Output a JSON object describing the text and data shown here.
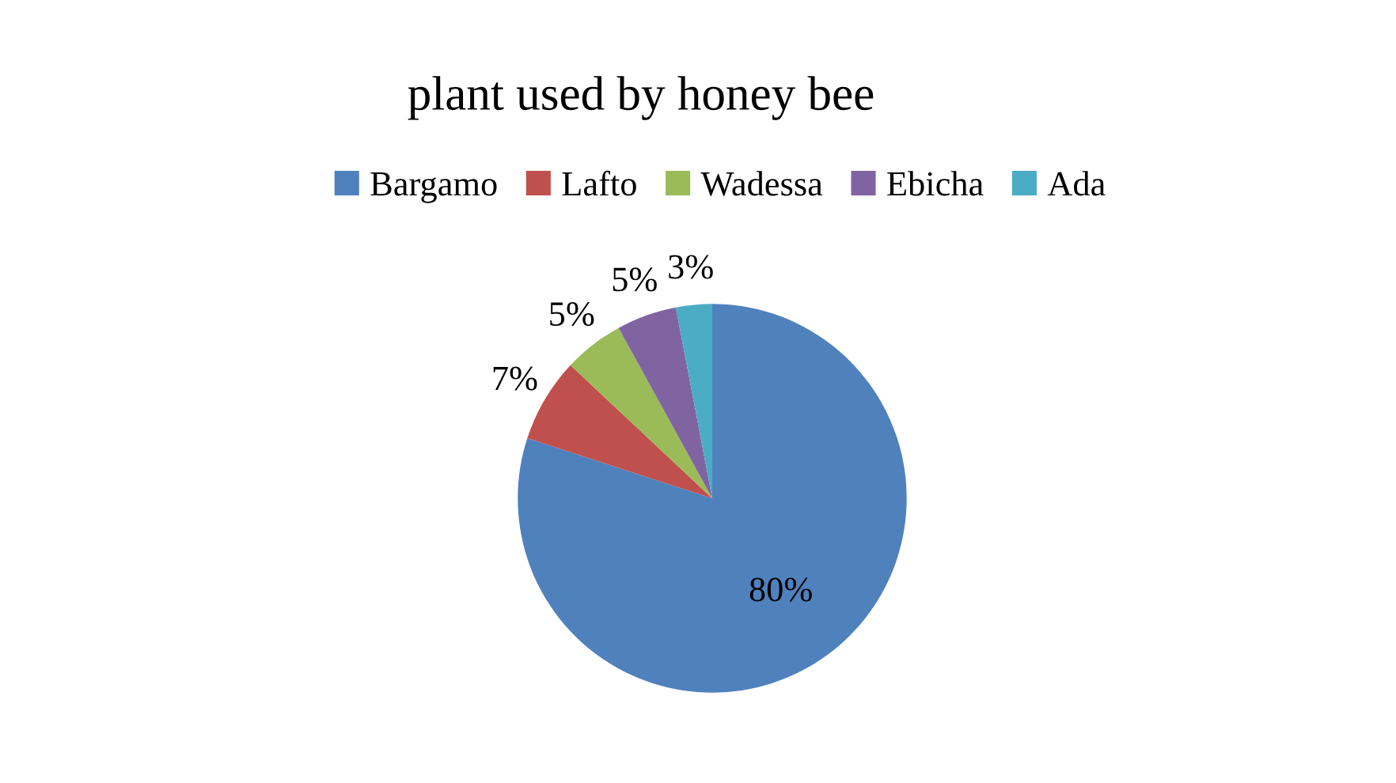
{
  "chart_data": {
    "type": "pie",
    "title": "plant used by honey bee",
    "categories": [
      "Bargamo",
      "Lafto",
      "Wadessa",
      "Ebicha",
      "Ada"
    ],
    "values": [
      80,
      7,
      5,
      5,
      3
    ],
    "colors": [
      "#4f81bd",
      "#c0504d",
      "#9bbb59",
      "#8064a2",
      "#4bacc6"
    ],
    "value_labels": [
      "80%",
      "7%",
      "5%",
      "5%",
      "3%"
    ],
    "legend": "top"
  }
}
